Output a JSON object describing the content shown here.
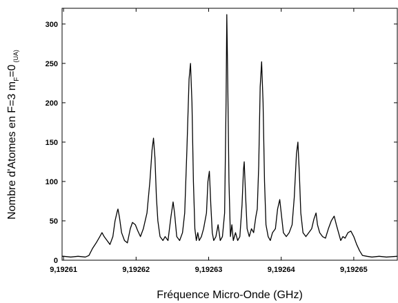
{
  "chart_data": {
    "type": "line",
    "x_label": "Fréquence Micro-Onde (GHz)",
    "y_label": {
      "main": "Nombre d'Atomes en F=3 m",
      "sub": "F",
      "after": "=0",
      "unit": "(UA)"
    },
    "color": "#000000",
    "xlim": [
      9.1926098,
      9.192656
    ],
    "ylim": [
      0,
      320
    ],
    "xticks": [
      {
        "value": 9.19261,
        "label": "9,19261"
      },
      {
        "value": 9.19262,
        "label": "9,19262"
      },
      {
        "value": 9.19263,
        "label": "9,19263"
      },
      {
        "value": 9.19264,
        "label": "9,19264"
      },
      {
        "value": 9.19265,
        "label": "9,19265"
      }
    ],
    "yticks": [
      0,
      50,
      100,
      150,
      200,
      250,
      300
    ],
    "x": [
      9.1926098,
      9.19261,
      9.192611,
      9.192612,
      9.192613,
      9.1926135,
      9.192614,
      9.1926145,
      9.192615,
      9.1926153,
      9.1926156,
      9.192616,
      9.1926164,
      9.1926168,
      9.1926171,
      9.1926174,
      9.1926175,
      9.1926177,
      9.192618,
      9.1926184,
      9.1926188,
      9.1926192,
      9.1926195,
      9.1926199,
      9.1926202,
      9.1926206,
      9.192621,
      9.1926215,
      9.1926219,
      9.1926222,
      9.1926224,
      9.1926226,
      9.1926228,
      9.192623,
      9.1926233,
      9.1926237,
      9.192624,
      9.1926244,
      9.1926248,
      9.1926251,
      9.1926253,
      9.1926256,
      9.192626,
      9.1926264,
      9.1926267,
      9.192627,
      9.1926273,
      9.1926275,
      9.1926277,
      9.1926279,
      9.1926281,
      9.1926283,
      9.1926285,
      9.1926287,
      9.192629,
      9.1926293,
      9.1926297,
      9.1926299,
      9.1926301,
      9.1926303,
      9.1926305,
      9.1926307,
      9.192631,
      9.1926313,
      9.1926316,
      9.1926319,
      9.1926322,
      9.1926324,
      9.1926325,
      9.1926326,
      9.1926328,
      9.192633,
      9.1926332,
      9.1926334,
      9.1926337,
      9.192634,
      9.1926343,
      9.1926346,
      9.1926348,
      9.1926349,
      9.1926351,
      9.1926353,
      9.1926356,
      9.1926359,
      9.1926362,
      9.1926365,
      9.1926367,
      9.1926369,
      9.1926371,
      9.1926373,
      9.1926375,
      9.1926377,
      9.1926379,
      9.1926382,
      9.1926385,
      9.1926388,
      9.1926392,
      9.1926395,
      9.1926398,
      9.19264,
      9.1926403,
      9.1926407,
      9.1926411,
      9.1926415,
      9.1926418,
      9.1926421,
      9.1926423,
      9.1926425,
      9.1926427,
      9.192643,
      9.1926434,
      9.1926438,
      9.1926442,
      9.1926445,
      9.1926448,
      9.192645,
      9.1926453,
      9.1926457,
      9.1926461,
      9.1926465,
      9.1926469,
      9.1926473,
      9.1926476,
      9.1926479,
      9.1926482,
      9.1926485,
      9.1926488,
      9.1926492,
      9.1926496,
      9.19265,
      9.1926504,
      9.1926508,
      9.1926512,
      9.1926518,
      9.1926525,
      9.1926535,
      9.1926545,
      9.192656
    ],
    "values": [
      5,
      5,
      4,
      5,
      4,
      6,
      15,
      22,
      30,
      35,
      30,
      25,
      20,
      30,
      50,
      62,
      65,
      55,
      35,
      25,
      22,
      40,
      48,
      45,
      38,
      30,
      40,
      60,
      100,
      140,
      155,
      130,
      80,
      50,
      30,
      25,
      30,
      25,
      55,
      74,
      60,
      30,
      25,
      35,
      60,
      140,
      230,
      250,
      200,
      100,
      40,
      25,
      35,
      25,
      30,
      40,
      60,
      100,
      113,
      70,
      35,
      25,
      30,
      45,
      25,
      30,
      60,
      200,
      312,
      250,
      100,
      30,
      45,
      25,
      35,
      25,
      30,
      70,
      115,
      125,
      80,
      40,
      30,
      40,
      35,
      55,
      65,
      120,
      220,
      252,
      200,
      100,
      45,
      30,
      25,
      35,
      40,
      65,
      77,
      60,
      35,
      30,
      35,
      45,
      80,
      135,
      150,
      110,
      60,
      35,
      30,
      35,
      40,
      52,
      60,
      45,
      35,
      30,
      28,
      40,
      50,
      56,
      45,
      35,
      25,
      30,
      28,
      35,
      37,
      30,
      20,
      12,
      6,
      5,
      4,
      5,
      4,
      5
    ]
  }
}
